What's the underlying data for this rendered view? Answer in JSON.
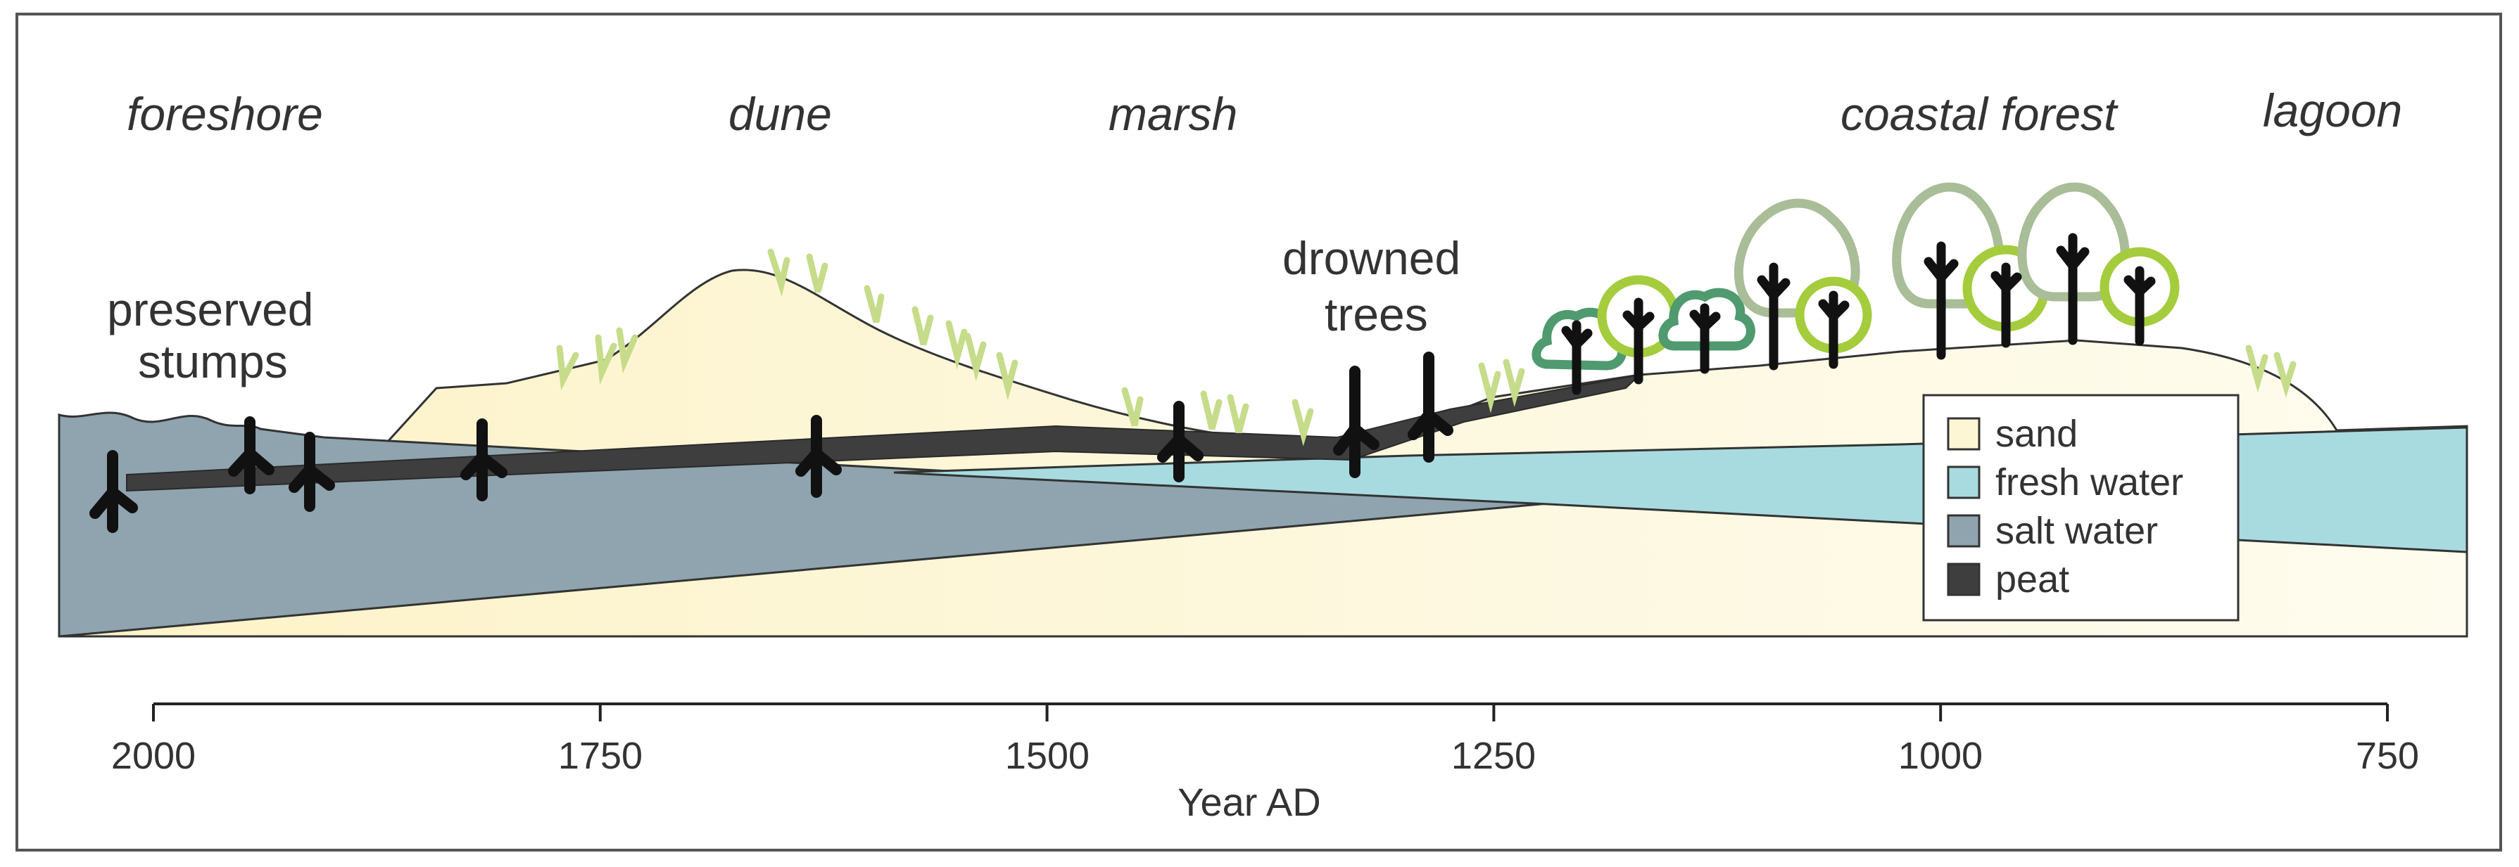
{
  "zones": [
    {
      "id": "foreshore",
      "label": "foreshore"
    },
    {
      "id": "dune",
      "label": "dune"
    },
    {
      "id": "marsh",
      "label": "marsh"
    },
    {
      "id": "coastal-forest",
      "label": "coastal forest"
    },
    {
      "id": "lagoon",
      "label": "lagoon"
    }
  ],
  "callouts": {
    "preserved_stumps": [
      "preserved",
      "stumps"
    ],
    "drowned_trees": [
      "drowned",
      "trees"
    ]
  },
  "axis": {
    "title": "Year AD",
    "min": 750,
    "max": 2000,
    "reversed": true,
    "ticks": [
      "2000",
      "1750",
      "1500",
      "1250",
      "1000",
      "750"
    ]
  },
  "legend": {
    "items": [
      {
        "label": "sand",
        "color": "#fdf6d4"
      },
      {
        "label": "fresh water",
        "color": "#a8dbe0"
      },
      {
        "label": "salt water",
        "color": "#8fa4ae"
      },
      {
        "label": "peat",
        "color": "#3e3e3e"
      }
    ]
  },
  "colors": {
    "sand": "#fdf6d4",
    "fresh_water": "#a8dbe0",
    "salt_water": "#8fa4ae",
    "peat": "#3e3e3e",
    "stump": "#111111",
    "grass": "#c6dc8a",
    "tree_green_light": "#a4cc3c",
    "tree_green_mid": "#4f9a6f",
    "tree_sage": "#a9bd98"
  }
}
